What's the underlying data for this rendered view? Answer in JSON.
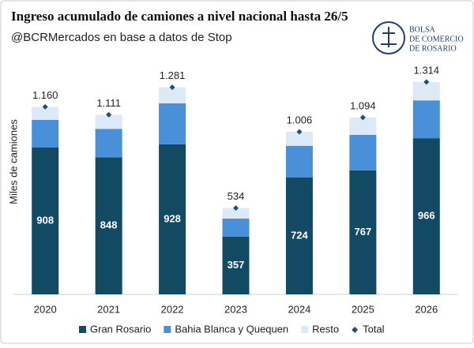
{
  "logo": {
    "lines": [
      "BOLSA",
      "DE COMERCIO",
      "DE ROSARIO"
    ]
  },
  "chart_data": {
    "type": "bar",
    "stacked": true,
    "title": "Ingreso acumulado de camiones a nivel nacional hasta 26/5",
    "subtitle": "@BCRMercados en base a datos de Stop",
    "y_label": "Miles de camiones",
    "categories": [
      "2020",
      "2021",
      "2022",
      "2023",
      "2024",
      "2025",
      "2026"
    ],
    "ylim": [
      0,
      1450
    ],
    "series": [
      {
        "name": "Gran Rosario",
        "color": "#134a63",
        "show_labels": true,
        "values": [
          908,
          848,
          928,
          357,
          724,
          767,
          966
        ]
      },
      {
        "name": "Bahia Blanca y Quequen",
        "color": "#4a90d9",
        "values": [
          171,
          176,
          254,
          112,
          195,
          220,
          234
        ]
      },
      {
        "name": "Resto",
        "color": "#dce9f7",
        "values": [
          81,
          87,
          99,
          65,
          87,
          107,
          114
        ]
      },
      {
        "name": "Total",
        "color": "#1f4e79",
        "type": "point",
        "show_labels": true,
        "values": [
          1160,
          1111,
          1281,
          534,
          1006,
          1094,
          1314
        ],
        "value_labels": [
          "1.160",
          "1.111",
          "1.281",
          "534",
          "1.006",
          "1.094",
          "1.314"
        ]
      }
    ]
  }
}
